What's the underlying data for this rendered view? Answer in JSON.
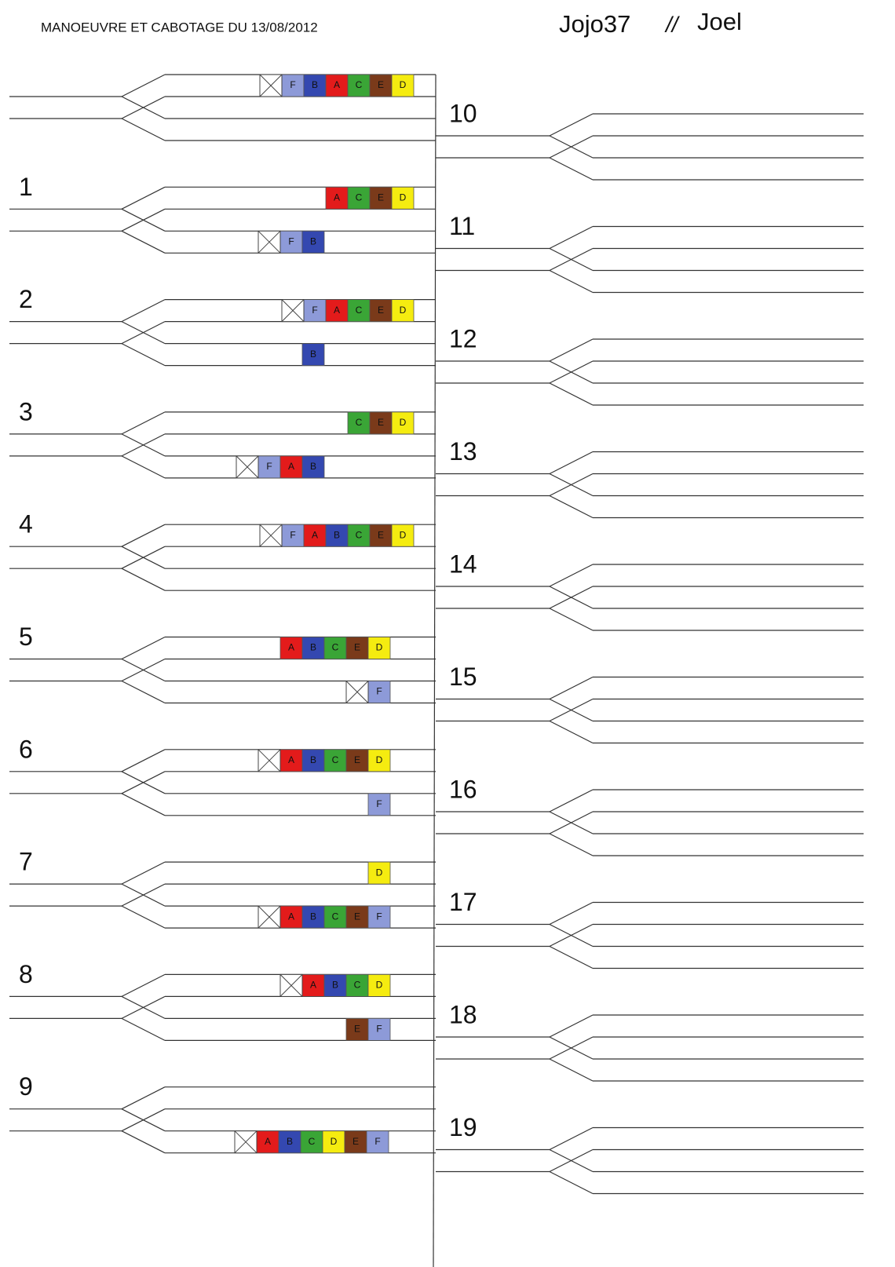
{
  "header": {
    "title": "MANOEUVRE ET CABOTAGE DU 13/08/2012",
    "author": "Jojo37",
    "separator": "//",
    "name": "Joel"
  },
  "colors": {
    "A": "#e31b1b",
    "B": "#3448b0",
    "C": "#3aa536",
    "D": "#f5ec10",
    "E": "#7a3a1a",
    "F": "#8d9ad8"
  },
  "left_steps": [
    {
      "label": null,
      "upper": {
        "loco": true,
        "cars": [
          "F",
          "B",
          "A",
          "C",
          "E",
          "D"
        ]
      },
      "lower": null
    },
    {
      "label": "1",
      "upper": {
        "loco": false,
        "cars": [
          "A",
          "C",
          "E",
          "D"
        ]
      },
      "lower": {
        "loco": true,
        "cars": [
          "F",
          "B"
        ]
      }
    },
    {
      "label": "2",
      "upper": {
        "loco": true,
        "cars": [
          "F",
          "A",
          "C",
          "E",
          "D"
        ]
      },
      "lower": {
        "loco": false,
        "cars": [
          "B"
        ]
      }
    },
    {
      "label": "3",
      "upper": {
        "loco": false,
        "cars": [
          "C",
          "E",
          "D"
        ]
      },
      "lower": {
        "loco": true,
        "cars": [
          "F",
          "A",
          "B"
        ]
      }
    },
    {
      "label": "4",
      "upper": {
        "loco": true,
        "cars": [
          "F",
          "A",
          "B",
          "C",
          "E",
          "D"
        ]
      },
      "lower": null
    },
    {
      "label": "5",
      "upper": {
        "loco": false,
        "cars": [
          "A",
          "B",
          "C",
          "E",
          "D"
        ]
      },
      "lower": {
        "loco": true,
        "cars": [
          "F"
        ]
      }
    },
    {
      "label": "6",
      "upper": {
        "loco": true,
        "cars": [
          "A",
          "B",
          "C",
          "E",
          "D"
        ]
      },
      "lower": {
        "loco": false,
        "cars": [
          "F"
        ]
      }
    },
    {
      "label": "7",
      "upper": {
        "loco": false,
        "cars": [
          "D"
        ]
      },
      "lower": {
        "loco": true,
        "cars": [
          "A",
          "B",
          "C",
          "E",
          "F"
        ]
      }
    },
    {
      "label": "8",
      "upper": {
        "loco": true,
        "cars": [
          "A",
          "B",
          "C",
          "D"
        ]
      },
      "lower": {
        "loco": false,
        "cars": [
          "E",
          "F"
        ]
      }
    },
    {
      "label": "9",
      "upper": null,
      "lower": {
        "loco": true,
        "cars": [
          "A",
          "B",
          "C",
          "D",
          "E",
          "F"
        ]
      }
    }
  ],
  "right_steps": [
    "10",
    "11",
    "12",
    "13",
    "14",
    "15",
    "16",
    "17",
    "18",
    "19"
  ]
}
